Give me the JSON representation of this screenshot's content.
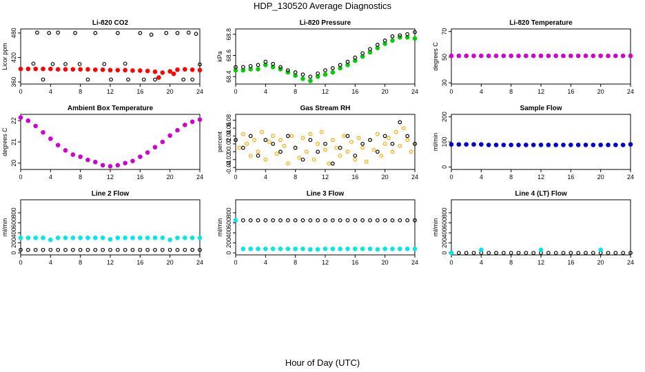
{
  "figure": {
    "title": "HDP_130520  Average Diagnostics",
    "xlabel": "Hour of Day (UTC)"
  },
  "chart_data": [
    {
      "type": "scatter",
      "title": "Li-820 CO2",
      "ylabel": "Licor ppm",
      "xlim": [
        0,
        24
      ],
      "ylim": [
        355,
        490
      ],
      "xticks": [
        0,
        4,
        8,
        12,
        16,
        20,
        24
      ],
      "yticks": [
        360,
        420,
        480
      ],
      "series": [
        {
          "color": "#ff0000",
          "marker": "o",
          "filled": true,
          "x": [
            0,
            1,
            2,
            3,
            4,
            5,
            6,
            7,
            8,
            9,
            10,
            11,
            12,
            13,
            14,
            15,
            16,
            17,
            18,
            18.5,
            19,
            20,
            20.5,
            21,
            22,
            23,
            24
          ],
          "y": [
            392,
            392,
            392,
            392,
            392,
            391,
            391,
            391,
            391,
            391,
            390,
            390,
            389,
            389,
            389,
            388,
            388,
            387,
            385,
            371,
            383,
            386,
            380,
            390,
            391,
            390,
            389
          ]
        },
        {
          "color": "#000000",
          "marker": "o",
          "filled": false,
          "x": [
            1.7,
            2.2,
            3.0,
            3.8,
            4.3,
            5.0,
            6.0,
            7.3,
            7.9,
            9.0,
            10.0,
            11.2,
            12.1,
            13.0,
            14.0,
            14.4,
            16.0,
            16.5,
            17.5,
            18.0,
            19.5,
            21.0,
            21.8,
            22.5,
            23.0,
            23.5,
            24
          ],
          "y": [
            405,
            481,
            366,
            480,
            404,
            481,
            404,
            480,
            404,
            366,
            480,
            404,
            366,
            480,
            405,
            366,
            480,
            366,
            476,
            366,
            480,
            480,
            366,
            481,
            366,
            478,
            403
          ]
        }
      ]
    },
    {
      "type": "scatter",
      "title": "Li-820 Pressure",
      "ylabel": "kPa",
      "xlim": [
        0,
        24
      ],
      "ylim": [
        68.33,
        68.85
      ],
      "xticks": [
        0,
        4,
        8,
        12,
        16,
        20,
        24
      ],
      "yticks": [
        68.4,
        68.6,
        68.8
      ],
      "series": [
        {
          "color": "#00cc00",
          "marker": "o",
          "filled": true,
          "x": [
            0,
            1,
            2,
            3,
            4,
            5,
            6,
            7,
            8,
            9,
            10,
            11,
            12,
            13,
            14,
            15,
            16,
            17,
            18,
            19,
            20,
            21,
            22,
            23,
            24
          ],
          "y": [
            68.46,
            68.46,
            68.47,
            68.47,
            68.51,
            68.49,
            68.47,
            68.44,
            68.41,
            68.38,
            68.36,
            68.4,
            68.42,
            68.44,
            68.48,
            68.51,
            68.55,
            68.59,
            68.63,
            68.67,
            68.71,
            68.74,
            68.77,
            68.77,
            68.76
          ]
        },
        {
          "color": "#000000",
          "marker": "o",
          "filled": false,
          "x": [
            0,
            1,
            2,
            3,
            4,
            5,
            6,
            7,
            8,
            9,
            10,
            11,
            12,
            13,
            14,
            15,
            16,
            17,
            18,
            19,
            20,
            21,
            22,
            23,
            24
          ],
          "y": [
            68.49,
            68.49,
            68.5,
            68.51,
            68.54,
            68.52,
            68.49,
            68.46,
            68.44,
            68.42,
            68.4,
            68.43,
            68.46,
            68.48,
            68.51,
            68.54,
            68.58,
            68.62,
            68.66,
            68.7,
            68.74,
            68.78,
            68.79,
            68.8,
            68.82
          ]
        }
      ]
    },
    {
      "type": "scatter",
      "title": "Li-820 Temperature",
      "ylabel": "degrees C",
      "xlim": [
        0,
        24
      ],
      "ylim": [
        29,
        72
      ],
      "xticks": [
        0,
        4,
        8,
        12,
        16,
        20,
        24
      ],
      "yticks": [
        30,
        50,
        70
      ],
      "series": [
        {
          "color": "#cc00cc",
          "marker": "o",
          "filled": true,
          "x": [
            0,
            1,
            2,
            3,
            4,
            5,
            6,
            7,
            8,
            9,
            10,
            11,
            12,
            13,
            14,
            15,
            16,
            17,
            18,
            19,
            20,
            21,
            22,
            23,
            24
          ],
          "y": [
            51,
            51,
            51,
            51,
            51,
            51,
            51,
            51,
            51,
            51,
            51,
            51,
            51,
            51,
            51,
            51,
            51,
            51,
            51,
            51,
            51,
            51,
            51,
            51,
            51
          ]
        }
      ]
    },
    {
      "type": "scatter",
      "title": "Ambient Box Temperature",
      "ylabel": "degrees C",
      "xlim": [
        0,
        24
      ],
      "ylim": [
        19.7,
        22.3
      ],
      "xticks": [
        0,
        4,
        8,
        12,
        16,
        20,
        24
      ],
      "yticks": [
        20.0,
        21.0,
        22.0
      ],
      "series": [
        {
          "color": "#cc00cc",
          "marker": "o",
          "filled": true,
          "x": [
            0,
            1,
            2,
            3,
            4,
            5,
            6,
            7,
            8,
            9,
            10,
            11,
            12,
            13,
            14,
            15,
            16,
            17,
            18,
            19,
            20,
            21,
            22,
            23,
            24
          ],
          "y": [
            22.15,
            22.0,
            21.75,
            21.45,
            21.15,
            20.85,
            20.6,
            20.4,
            20.3,
            20.15,
            20.05,
            19.9,
            19.85,
            19.9,
            20.0,
            20.1,
            20.3,
            20.5,
            20.75,
            21.0,
            21.3,
            21.55,
            21.8,
            21.95,
            22.05
          ]
        }
      ]
    },
    {
      "type": "scatter",
      "title": "Gas Stream RH",
      "ylabel": "percent",
      "xlim": [
        0,
        24
      ],
      "ylim": [
        -0.045,
        0.095
      ],
      "xticks": [
        0,
        4,
        8,
        12,
        16,
        20,
        24
      ],
      "yticks": [
        -0.04,
        -0.02,
        0.0,
        0.02,
        0.04,
        0.06,
        0.08
      ],
      "series": [
        {
          "color": "#ffaa00",
          "marker": "o",
          "filled": false,
          "x": [
            0,
            0.5,
            1,
            1.5,
            2,
            2.5,
            3,
            3.5,
            4,
            4.5,
            5,
            5.5,
            6,
            6.5,
            7,
            7.5,
            8,
            8.5,
            9,
            9.5,
            10,
            10.5,
            11,
            11.5,
            12,
            12.5,
            13,
            13.5,
            14,
            14.5,
            15,
            15.5,
            16,
            16.5,
            17,
            17.5,
            18,
            18.5,
            19,
            19.5,
            20,
            20.5,
            21,
            21.5,
            22,
            22.5,
            23,
            23.5,
            24
          ],
          "y": [
            0.03,
            0.01,
            0.045,
            0.02,
            -0.01,
            0.03,
            0.0,
            0.05,
            -0.02,
            0.025,
            0.04,
            -0.005,
            0.03,
            0.015,
            -0.03,
            0.04,
            0.01,
            -0.015,
            0.035,
            0.0,
            0.045,
            -0.02,
            0.02,
            0.05,
            0.005,
            -0.03,
            0.03,
            0.01,
            -0.01,
            0.04,
            0.0,
            0.025,
            -0.02,
            0.035,
            0.01,
            -0.025,
            0.03,
            0.005,
            0.045,
            -0.01,
            0.02,
            0.035,
            0.0,
            0.05,
            0.015,
            0.06,
            0.03,
            0.0,
            0.02
          ]
        },
        {
          "color": "#000000",
          "marker": "o",
          "filled": false,
          "x": [
            0,
            1,
            2,
            3,
            4,
            5,
            6,
            7,
            8,
            9,
            10,
            11,
            12,
            13,
            14,
            15,
            16,
            17,
            18,
            19,
            20,
            21,
            22,
            23,
            24
          ],
          "y": [
            0.03,
            0.01,
            0.04,
            -0.01,
            0.03,
            0.02,
            0.0,
            0.04,
            0.01,
            -0.02,
            0.03,
            0.0,
            0.02,
            -0.03,
            0.01,
            0.04,
            -0.01,
            0.02,
            0.03,
            0.0,
            0.04,
            0.02,
            0.075,
            0.04,
            0.02
          ]
        }
      ]
    },
    {
      "type": "scatter",
      "title": "Sample Flow",
      "ylabel": "ml/min",
      "xlim": [
        0,
        24
      ],
      "ylim": [
        -10,
        210
      ],
      "xticks": [
        0,
        4,
        8,
        12,
        16,
        20,
        24
      ],
      "yticks": [
        0,
        100,
        200
      ],
      "series": [
        {
          "color": "#0000cc",
          "marker": "o",
          "filled": true,
          "x": [
            0,
            1,
            2,
            3,
            4,
            5,
            6,
            7,
            8,
            9,
            10,
            11,
            12,
            13,
            14,
            15,
            16,
            17,
            18,
            19,
            20,
            21,
            22,
            23,
            24
          ],
          "y": [
            90,
            90,
            90,
            90,
            90,
            88,
            88,
            88,
            88,
            88,
            88,
            88,
            88,
            88,
            88,
            88,
            88,
            88,
            88,
            88,
            88,
            88,
            88,
            88,
            90
          ]
        }
      ]
    },
    {
      "type": "scatter",
      "title": "Line 2 Flow",
      "ylabel": "ml/min",
      "xlim": [
        0,
        24
      ],
      "ylim": [
        -40,
        1060
      ],
      "xticks": [
        0,
        4,
        8,
        12,
        16,
        20,
        24
      ],
      "yticks": [
        0,
        200,
        400,
        600,
        800
      ],
      "series": [
        {
          "color": "#00e5e5",
          "marker": "o",
          "filled": true,
          "x": [
            0,
            1,
            2,
            3,
            4,
            5,
            6,
            7,
            8,
            9,
            10,
            11,
            12,
            13,
            14,
            15,
            16,
            17,
            18,
            19,
            20,
            21,
            22,
            23,
            24
          ],
          "y": [
            300,
            300,
            300,
            300,
            260,
            300,
            300,
            300,
            300,
            300,
            300,
            300,
            270,
            300,
            300,
            300,
            300,
            300,
            300,
            300,
            260,
            300,
            300,
            300,
            300
          ]
        },
        {
          "color": "#000000",
          "marker": "o",
          "filled": false,
          "x": [
            0,
            1,
            2,
            3,
            4,
            5,
            6,
            7,
            8,
            9,
            10,
            11,
            12,
            13,
            14,
            15,
            16,
            17,
            18,
            19,
            20,
            21,
            22,
            23,
            24
          ],
          "y": [
            60,
            60,
            60,
            60,
            60,
            60,
            60,
            60,
            60,
            60,
            60,
            60,
            60,
            60,
            60,
            60,
            60,
            60,
            60,
            60,
            60,
            60,
            60,
            60,
            60
          ]
        }
      ]
    },
    {
      "type": "scatter",
      "title": "Line 3 Flow",
      "ylabel": "ml/min",
      "xlim": [
        0,
        24
      ],
      "ylim": [
        -40,
        1060
      ],
      "xticks": [
        0,
        4,
        8,
        12,
        16,
        20,
        24
      ],
      "yticks": [
        0,
        200,
        400,
        600,
        800
      ],
      "series": [
        {
          "color": "#000000",
          "marker": "o",
          "filled": false,
          "x": [
            1,
            2,
            3,
            4,
            5,
            6,
            7,
            8,
            9,
            10,
            11,
            12,
            13,
            14,
            15,
            16,
            17,
            18,
            19,
            20,
            21,
            22,
            23,
            24
          ],
          "y": [
            650,
            650,
            650,
            650,
            650,
            650,
            650,
            650,
            650,
            650,
            650,
            650,
            650,
            650,
            650,
            650,
            650,
            650,
            650,
            650,
            650,
            650,
            650,
            650
          ]
        },
        {
          "color": "#00e5e5",
          "marker": "o",
          "filled": true,
          "x": [
            0,
            1,
            2,
            3,
            4,
            5,
            6,
            7,
            8,
            9,
            10,
            11,
            12,
            13,
            14,
            15,
            16,
            17,
            18,
            19,
            20,
            21,
            22,
            23,
            24
          ],
          "y": [
            650,
            80,
            80,
            80,
            80,
            80,
            80,
            80,
            80,
            80,
            70,
            70,
            80,
            80,
            80,
            80,
            80,
            80,
            80,
            70,
            80,
            80,
            80,
            80,
            80
          ]
        }
      ]
    },
    {
      "type": "scatter",
      "title": "Line 4 (LT) Flow",
      "ylabel": "ml/min",
      "xlim": [
        0,
        24
      ],
      "ylim": [
        -40,
        1060
      ],
      "xticks": [
        0,
        4,
        8,
        12,
        16,
        20,
        24
      ],
      "yticks": [
        0,
        200,
        400,
        600,
        800
      ],
      "series": [
        {
          "color": "#000000",
          "marker": "o",
          "filled": false,
          "x": [
            0,
            1,
            2,
            3,
            4,
            5,
            6,
            7,
            8,
            9,
            10,
            11,
            12,
            13,
            14,
            15,
            16,
            17,
            18,
            19,
            20,
            21,
            22,
            23,
            24
          ],
          "y": [
            0,
            0,
            0,
            0,
            0,
            0,
            0,
            0,
            0,
            0,
            0,
            0,
            0,
            0,
            0,
            0,
            0,
            0,
            0,
            0,
            0,
            0,
            0,
            0,
            0
          ]
        },
        {
          "color": "#00e5e5",
          "marker": "o",
          "filled": true,
          "x": [
            0,
            4,
            12,
            20
          ],
          "y": [
            0,
            60,
            60,
            60
          ]
        }
      ]
    }
  ]
}
